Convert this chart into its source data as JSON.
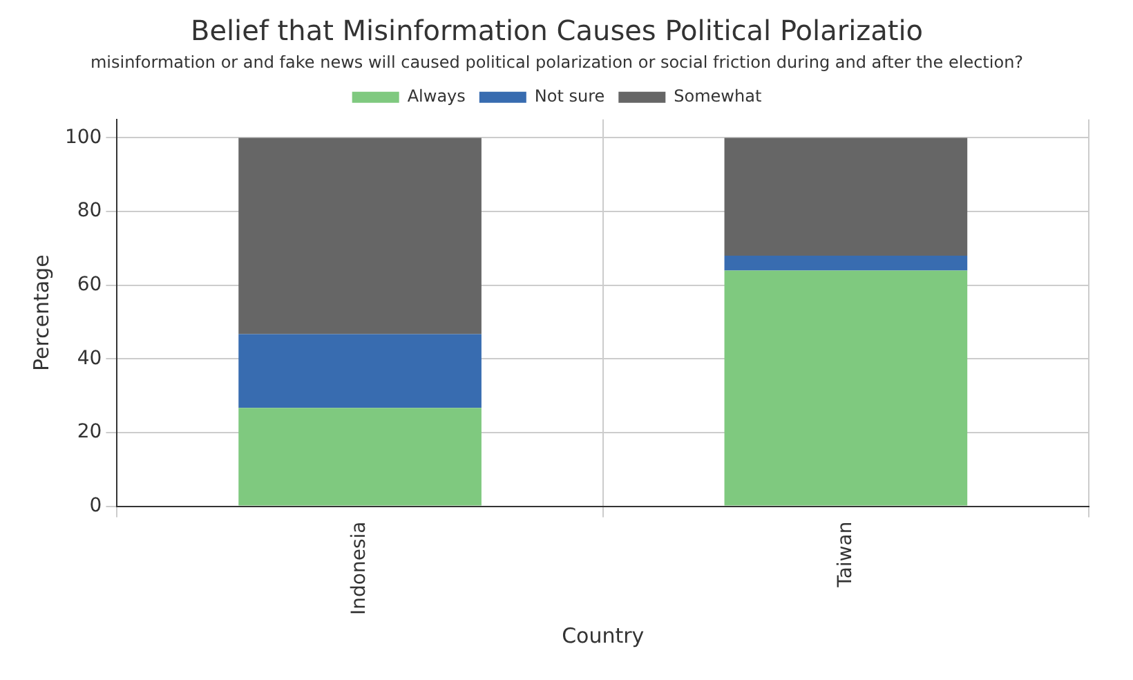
{
  "chart_data": {
    "type": "bar",
    "title": "Belief that Misinformation Causes Political Polarizatio",
    "legend_title": "misinformation or and fake news will caused political polarization or social friction during and after the election?",
    "xlabel": "Country",
    "ylabel": "Percentage",
    "categories": [
      "Indonesia",
      "Taiwan"
    ],
    "stacked": true,
    "series": [
      {
        "name": "Always",
        "color": "#7fc97f",
        "values": [
          26.7,
          64
        ]
      },
      {
        "name": "Not sure",
        "color": "#386cb0",
        "values": [
          20,
          4
        ]
      },
      {
        "name": "Somewhat",
        "color": "#666666",
        "values": [
          53.3,
          32
        ]
      }
    ],
    "ylim": [
      0,
      105
    ],
    "yticks": [
      0,
      20,
      40,
      60,
      80,
      100
    ],
    "grid": true,
    "legend": "top"
  }
}
